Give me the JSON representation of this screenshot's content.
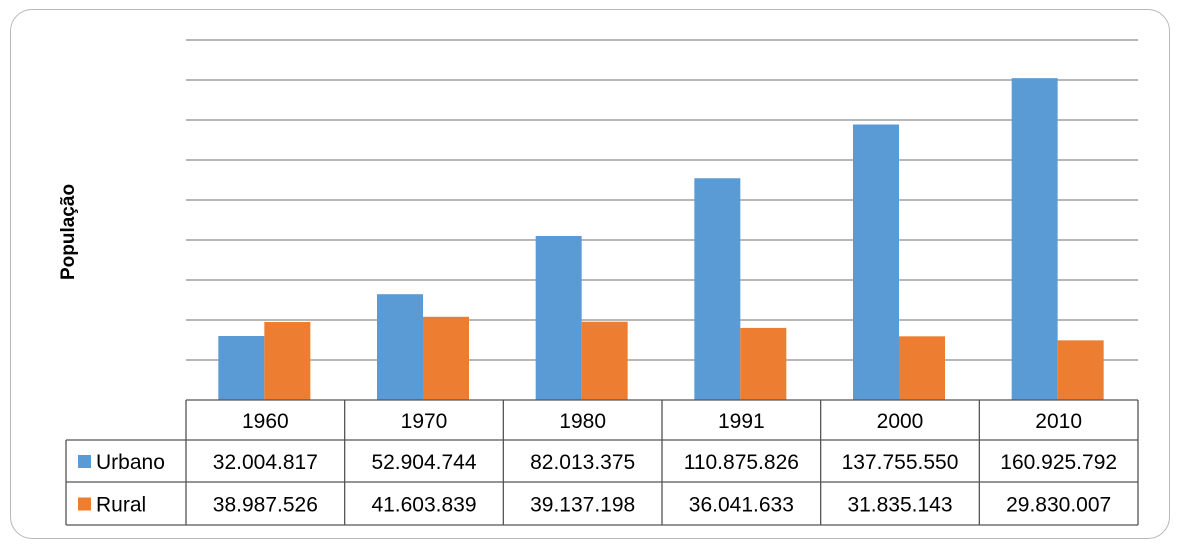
{
  "chart_data": {
    "type": "bar",
    "title": "",
    "xlabel": "",
    "ylabel": "População",
    "categories": [
      "1960",
      "1970",
      "1980",
      "1991",
      "2000",
      "2010"
    ],
    "series": [
      {
        "name": "Urbano",
        "color": "#5b9bd5",
        "values": [
          32004817,
          52904744,
          82013375,
          110875826,
          137755550,
          160925792
        ],
        "value_labels": [
          "32.004.817",
          "52.904.744",
          "82.013.375",
          "110.875.826",
          "137.755.550",
          "160.925.792"
        ]
      },
      {
        "name": "Rural",
        "color": "#ed7d31",
        "values": [
          38987526,
          41603839,
          39137198,
          36041633,
          31835143,
          29830007
        ],
        "value_labels": [
          "38.987.526",
          "41.603.839",
          "39.137.198",
          "36.041.633",
          "31.835.143",
          "29.830.007"
        ]
      }
    ],
    "ylim": [
      0,
      180000000
    ],
    "grid": true,
    "legend": "data-table"
  }
}
